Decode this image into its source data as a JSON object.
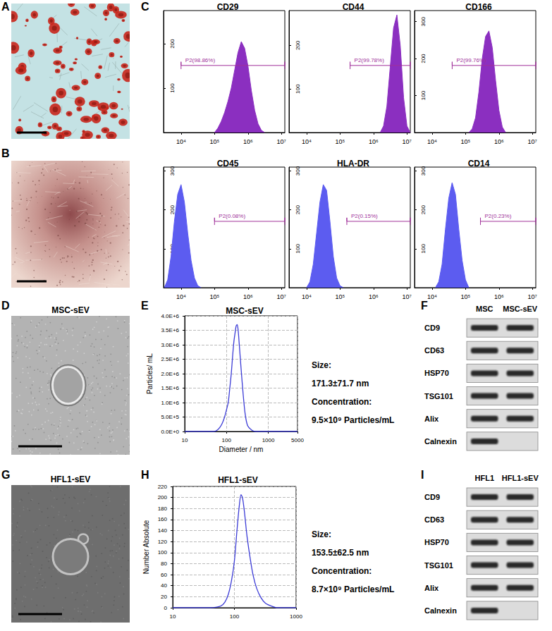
{
  "images": [
    {
      "panel": "A"
    },
    {
      "panel": "B"
    },
    {
      "panel": "D",
      "title": "MSC-sEV"
    },
    {
      "panel": "G",
      "title": "HFL1-sEV"
    }
  ],
  "chart_data": [
    {
      "panel": "C",
      "type": "area",
      "title": "CD29",
      "color": "#8b2fc0",
      "log": "x",
      "grid": false,
      "xlim": [
        3000,
        12600000
      ],
      "xticks": [
        {
          "value": 10000,
          "label": "10⁴"
        },
        {
          "value": 100000,
          "label": "10⁵"
        },
        {
          "value": 1000000,
          "label": "10⁶"
        },
        {
          "value": 10000000,
          "label": "10⁷"
        }
      ],
      "ylim": [
        0,
        275
      ],
      "yticks": [
        100,
        200
      ],
      "x": [
        100000,
        125893,
        158489,
        199526,
        251189,
        316228,
        398107,
        501187,
        630957,
        794328,
        1000000,
        1258925,
        1584893,
        1995262,
        2511886,
        3162278
      ],
      "values": [
        0,
        10,
        25,
        45,
        70,
        100,
        140,
        180,
        205,
        190,
        150,
        95,
        50,
        20,
        5,
        0
      ],
      "gate": {
        "label": "P2(98.86%)",
        "range": [
          10000,
          12600000
        ]
      }
    },
    {
      "panel": "C",
      "type": "area",
      "title": "CD44",
      "color": "#8b2fc0",
      "log": "x",
      "grid": false,
      "xlim": [
        3000,
        12600000
      ],
      "xticks": [
        {
          "value": 10000,
          "label": "10⁴"
        },
        {
          "value": 100000,
          "label": "10⁵"
        },
        {
          "value": 1000000,
          "label": "10⁶"
        },
        {
          "value": 10000000,
          "label": "10⁷"
        }
      ],
      "ylim": [
        0,
        280
      ],
      "yticks": [
        100,
        200
      ],
      "x": [
        1584893,
        1995262,
        2511886,
        3162278,
        3981072,
        5011872,
        6309573,
        7943282,
        10000000,
        12589254
      ],
      "values": [
        0,
        15,
        60,
        150,
        240,
        270,
        200,
        80,
        15,
        0
      ],
      "gate": {
        "label": "P2(99.78%)",
        "range": [
          200000,
          12600000
        ]
      }
    },
    {
      "panel": "C",
      "type": "area",
      "title": "CD166",
      "color": "#8b2fc0",
      "log": "x",
      "grid": false,
      "xlim": [
        3000,
        12600000
      ],
      "xticks": [
        {
          "value": 10000,
          "label": "10⁴"
        },
        {
          "value": 100000,
          "label": "10⁵"
        },
        {
          "value": 1000000,
          "label": "10⁶"
        },
        {
          "value": 10000000,
          "label": "10⁷"
        }
      ],
      "ylim": [
        0,
        330
      ],
      "yticks": [
        100,
        200,
        300
      ],
      "x": [
        125893,
        158489,
        199526,
        251189,
        316228,
        398107,
        501187,
        630957,
        794328,
        1000000,
        1258925,
        1584893
      ],
      "values": [
        0,
        10,
        40,
        110,
        200,
        260,
        275,
        230,
        140,
        60,
        15,
        0
      ],
      "gate": {
        "label": "P2(99.76%)",
        "range": [
          40000,
          12600000
        ]
      }
    },
    {
      "panel": "C",
      "type": "area",
      "title": "CD45",
      "color": "#5c5cf0",
      "log": "x",
      "grid": false,
      "xlim": [
        3000,
        12600000
      ],
      "xticks": [
        {
          "value": 10000,
          "label": "10⁴"
        },
        {
          "value": 100000,
          "label": "10⁵"
        },
        {
          "value": 1000000,
          "label": "10⁶"
        },
        {
          "value": 10000000,
          "label": "10⁷"
        }
      ],
      "ylim": [
        0,
        310
      ],
      "yticks": [
        100,
        200,
        300
      ],
      "x": [
        3162,
        3981,
        5012,
        6310,
        7943,
        10000,
        12589,
        15849,
        19953,
        25119,
        31623,
        39811
      ],
      "values": [
        0,
        20,
        80,
        170,
        240,
        265,
        220,
        140,
        70,
        25,
        5,
        0
      ],
      "gate": {
        "label": "P2(0.08%)",
        "range": [
          100000,
          12600000
        ]
      }
    },
    {
      "panel": "C",
      "type": "area",
      "title": "HLA-DR",
      "color": "#5c5cf0",
      "log": "x",
      "grid": false,
      "xlim": [
        3000,
        12600000
      ],
      "xticks": [
        {
          "value": 10000,
          "label": "10⁴"
        },
        {
          "value": 100000,
          "label": "10⁵"
        },
        {
          "value": 1000000,
          "label": "10⁶"
        },
        {
          "value": 10000000,
          "label": "10⁷"
        }
      ],
      "ylim": [
        0,
        310
      ],
      "yticks": [
        100,
        200,
        300
      ],
      "x": [
        10000,
        12589,
        15849,
        19953,
        25119,
        31623,
        39811,
        50119,
        63096,
        79433,
        100000,
        125893
      ],
      "values": [
        0,
        15,
        60,
        140,
        220,
        265,
        250,
        170,
        80,
        25,
        5,
        0
      ],
      "gate": {
        "label": "P2(0.15%)",
        "range": [
          160000,
          12600000
        ]
      }
    },
    {
      "panel": "C",
      "type": "area",
      "title": "CD14",
      "color": "#5c5cf0",
      "log": "x",
      "grid": false,
      "xlim": [
        3000,
        12600000
      ],
      "xticks": [
        {
          "value": 10000,
          "label": "10⁴"
        },
        {
          "value": 100000,
          "label": "10⁵"
        },
        {
          "value": 1000000,
          "label": "10⁶"
        },
        {
          "value": 10000000,
          "label": "10⁷"
        }
      ],
      "ylim": [
        0,
        310
      ],
      "yticks": [
        100,
        200,
        300
      ],
      "x": [
        12589,
        15849,
        19953,
        25119,
        31623,
        39811,
        50119,
        63096,
        79433,
        100000,
        125893
      ],
      "values": [
        0,
        15,
        60,
        150,
        230,
        270,
        240,
        150,
        70,
        20,
        0
      ],
      "gate": {
        "label": "P2(0.23%)",
        "range": [
          280000,
          12600000
        ]
      }
    },
    {
      "panel": "E",
      "type": "line",
      "title": "MSC-sEV",
      "color": "#3b3bd6",
      "log": "x",
      "grid": true,
      "x_label": "Diameter / nm",
      "y_label": "Particles/ mL",
      "xlim": [
        10,
        5000
      ],
      "xticks": [
        10,
        100,
        1000,
        5000
      ],
      "ylim": [
        0,
        4000000
      ],
      "yticks": [
        {
          "value": 0,
          "label": "0.0E+0"
        },
        {
          "value": 500000,
          "label": "5.0E+5"
        },
        {
          "value": 1000000,
          "label": "1.0E+6"
        },
        {
          "value": 1500000,
          "label": "1.5E+6"
        },
        {
          "value": 2000000,
          "label": "2.0E+6"
        },
        {
          "value": 2500000,
          "label": "2.5E+6"
        },
        {
          "value": 3000000,
          "label": "3.0E+6"
        },
        {
          "value": 3500000,
          "label": "3.5E+6"
        },
        {
          "value": 4000000,
          "label": "4.0E+6"
        }
      ],
      "x": [
        10,
        50,
        60,
        70,
        80,
        90,
        100,
        110,
        120,
        130,
        140,
        150,
        160,
        170,
        180,
        190,
        200,
        220,
        250,
        280,
        320,
        400,
        500,
        1000,
        5000
      ],
      "values": [
        0,
        0,
        50000,
        150000,
        300000,
        500000,
        750000,
        1000000,
        1500000,
        2000000,
        2600000,
        3100000,
        3400000,
        3650000,
        3700000,
        3500000,
        3100000,
        2300000,
        1300000,
        600000,
        200000,
        50000,
        0,
        0,
        0
      ],
      "annotations": [
        "Size:",
        "171.3±71.7 nm",
        "Concentration:",
        "9.5×10⁹ Particles/mL"
      ]
    },
    {
      "panel": "H",
      "type": "line",
      "title": "HFL1-sEV",
      "color": "#3b3bd6",
      "log": "x",
      "grid": true,
      "y_label": "Number Absolute",
      "xlim": [
        10,
        1000
      ],
      "xticks": [
        10,
        100,
        1000
      ],
      "ylim": [
        0,
        220
      ],
      "yticks": [
        0,
        20,
        40,
        60,
        80,
        100,
        120,
        140,
        160,
        180,
        200,
        220
      ],
      "x": [
        10,
        40,
        60,
        70,
        80,
        90,
        100,
        110,
        120,
        128,
        135,
        145,
        160,
        180,
        200,
        230,
        270,
        320,
        400,
        500,
        1000
      ],
      "values": [
        0,
        0,
        3,
        10,
        25,
        50,
        85,
        140,
        185,
        205,
        200,
        175,
        130,
        90,
        60,
        35,
        18,
        8,
        3,
        0,
        0
      ],
      "annotations": [
        "Size:",
        "153.5±62.5 nm",
        "Concentration:",
        "8.7×10⁹ Particles/mL"
      ]
    }
  ],
  "blots": [
    {
      "panel": "F",
      "columns": [
        "MSC",
        "MSC-sEV"
      ],
      "rows": [
        "CD9",
        "CD63",
        "HSP70",
        "TSG101",
        "Alix",
        "Calnexin"
      ],
      "bands": [
        [
          true,
          true
        ],
        [
          true,
          true
        ],
        [
          true,
          true
        ],
        [
          true,
          true
        ],
        [
          true,
          true
        ],
        [
          true,
          false
        ]
      ]
    },
    {
      "panel": "I",
      "columns": [
        "HFL1",
        "HFL1-sEV"
      ],
      "rows": [
        "CD9",
        "CD63",
        "HSP70",
        "TSG101",
        "Alix",
        "Calnexin"
      ],
      "bands": [
        [
          true,
          true
        ],
        [
          true,
          true
        ],
        [
          true,
          true
        ],
        [
          true,
          true
        ],
        [
          true,
          true
        ],
        [
          true,
          false
        ]
      ]
    }
  ]
}
